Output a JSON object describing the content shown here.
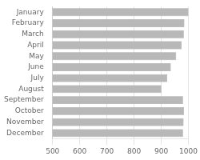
{
  "chart_data": {
    "type": "bar",
    "orientation": "horizontal",
    "categories": [
      "January",
      "February",
      "March",
      "April",
      "May",
      "June",
      "July",
      "August",
      "September",
      "October",
      "November",
      "December"
    ],
    "values": [
      1000,
      985,
      983,
      975,
      955,
      935,
      922,
      900,
      980,
      984,
      982,
      980
    ],
    "color": "#b8b8b8",
    "xlim": [
      500,
      1000
    ],
    "xticks": [
      500,
      600,
      700,
      800,
      900,
      1000
    ],
    "grid": true
  }
}
